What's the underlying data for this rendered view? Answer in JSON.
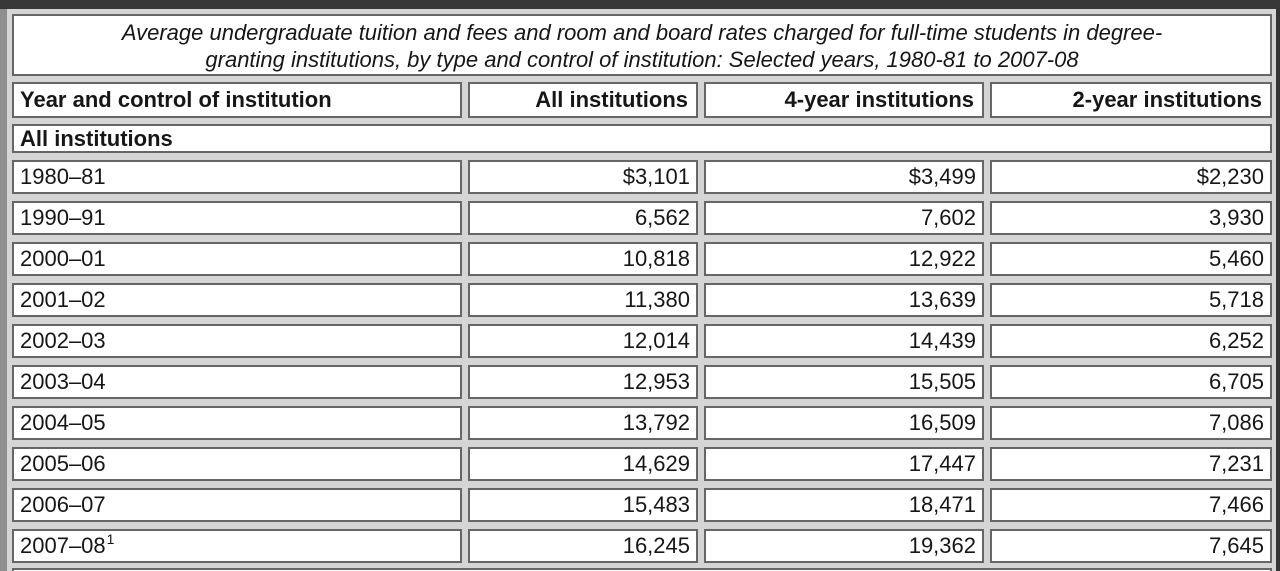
{
  "colors": {
    "outer_frame_top": "#383838",
    "outer_frame_left": "#8f8f8f",
    "outer_frame_right": "#333333",
    "cell_spacing_bg": "#d5d5d5",
    "cell_border": "#666666",
    "cell_bg": "#ffffff",
    "text": "#161616"
  },
  "table": {
    "title_line1": "Average undergraduate tuition and fees and room and board rates charged for full-time students in degree-",
    "title_line2": "granting institutions, by type and control of institution: Selected years, 1980-81 to 2007-08",
    "columns": [
      "Year and control of institution",
      "All institutions",
      "4-year institutions",
      "2-year institutions"
    ],
    "section_label": "All institutions",
    "rows": [
      {
        "year": "1980–81",
        "all": "$3,101",
        "four_year": "$3,499",
        "two_year": "$2,230"
      },
      {
        "year": "1990–91",
        "all": "6,562",
        "four_year": "7,602",
        "two_year": "3,930"
      },
      {
        "year": "2000–01",
        "all": "10,818",
        "four_year": "12,922",
        "two_year": "5,460"
      },
      {
        "year": "2001–02",
        "all": "11,380",
        "four_year": "13,639",
        "two_year": "5,718"
      },
      {
        "year": "2002–03",
        "all": "12,014",
        "four_year": "14,439",
        "two_year": "6,252"
      },
      {
        "year": "2003–04",
        "all": "12,953",
        "four_year": "15,505",
        "two_year": "6,705"
      },
      {
        "year": "2004–05",
        "all": "13,792",
        "four_year": "16,509",
        "two_year": "7,086"
      },
      {
        "year": "2005–06",
        "all": "14,629",
        "four_year": "17,447",
        "two_year": "7,231"
      },
      {
        "year": "2006–07",
        "all": "15,483",
        "four_year": "18,471",
        "two_year": "7,466"
      },
      {
        "year": "2007–08",
        "sup": "1",
        "all": "16,245",
        "four_year": "19,362",
        "two_year": "7,645"
      }
    ]
  }
}
